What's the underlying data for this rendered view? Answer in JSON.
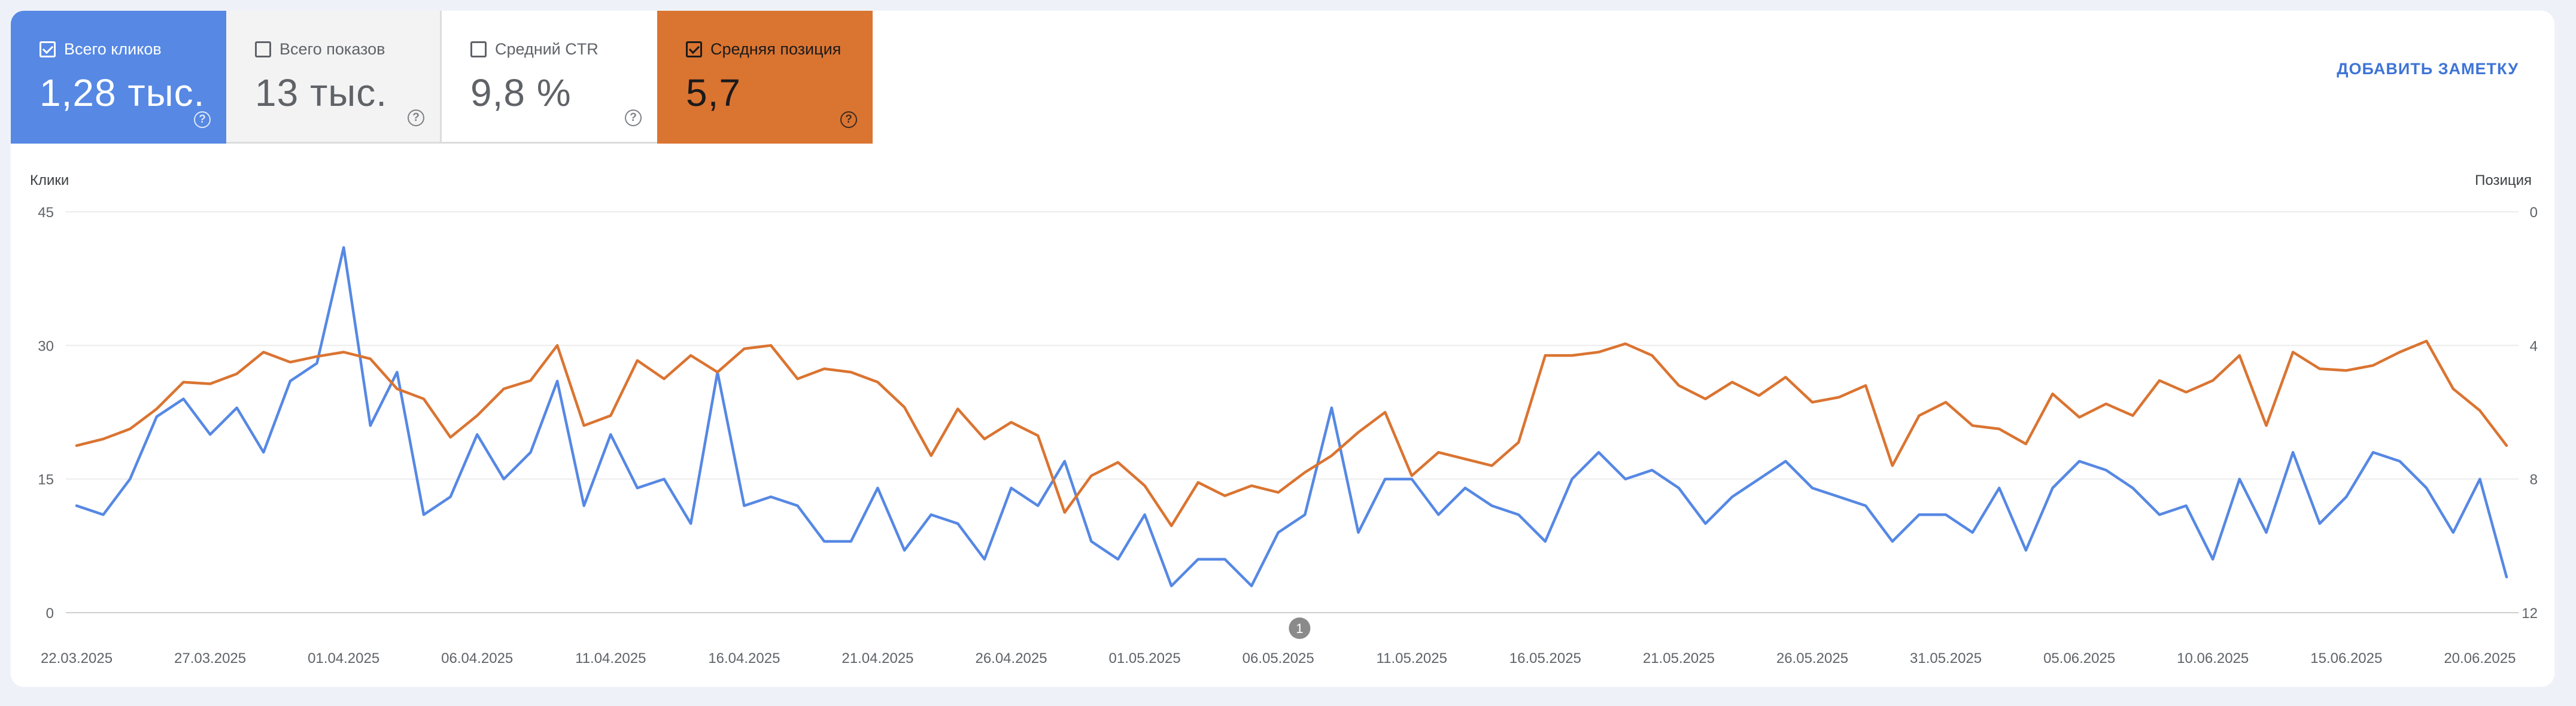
{
  "metrics": {
    "clicks": {
      "label": "Всего кликов",
      "value": "1,28 тыс.",
      "checked": true,
      "color": "#5688e4"
    },
    "impressions": {
      "label": "Всего показов",
      "value": "13 тыс.",
      "checked": false
    },
    "ctr": {
      "label": "Средний CTR",
      "value": "9,8 %",
      "checked": false
    },
    "position": {
      "label": "Средняя позиция",
      "value": "5,7",
      "checked": true,
      "color": "#da7431"
    }
  },
  "help_glyph": "?",
  "add_note_label": "ДОБАВИТЬ ЗАМЕТКУ",
  "annotation_label": "1",
  "chart_data": {
    "type": "line",
    "ylabel_left": "Клики",
    "ylabel_right": "Позиция",
    "y_left_ticks": [
      "45",
      "30",
      "15",
      "0"
    ],
    "y_right_ticks": [
      "0",
      "4",
      "8",
      "12"
    ],
    "ylim_left": [
      0,
      45
    ],
    "ylim_right": [
      12,
      0
    ],
    "right_axis_reversed": true,
    "grid": true,
    "x_tick_labels": [
      "22.03.2025",
      "27.03.2025",
      "01.04.2025",
      "06.04.2025",
      "11.04.2025",
      "16.04.2025",
      "21.04.2025",
      "26.04.2025",
      "01.05.2025",
      "06.05.2025",
      "11.05.2025",
      "16.05.2025",
      "21.05.2025",
      "26.05.2025",
      "31.05.2025",
      "05.06.2025",
      "10.06.2025",
      "15.06.2025",
      "20.06.2025"
    ],
    "x_start": "22.03.2025",
    "x_end": "21.06.2025",
    "series": [
      {
        "name": "Всего кликов",
        "axis": "left",
        "color": "#5688e4",
        "values": [
          12,
          11,
          15,
          22,
          24,
          20,
          23,
          18,
          26,
          28,
          41,
          21,
          27,
          11,
          13,
          20,
          15,
          18,
          26,
          12,
          20,
          14,
          15,
          10,
          27,
          12,
          13,
          12,
          8,
          8,
          14,
          7,
          11,
          10,
          6,
          14,
          12,
          17,
          8,
          6,
          11,
          3,
          6,
          6,
          3,
          9,
          11,
          23,
          9,
          15,
          15,
          11,
          14,
          12,
          11,
          8,
          15,
          18,
          15,
          16,
          14,
          10,
          13,
          15,
          17,
          14,
          13,
          12,
          8,
          11,
          11,
          9,
          14,
          7,
          14,
          17,
          16,
          14,
          11,
          12,
          6,
          15,
          9,
          18,
          10,
          13,
          18,
          17,
          14,
          9,
          15,
          4
        ]
      },
      {
        "name": "Средняя позиция",
        "axis": "right",
        "color": "#da7431",
        "values": [
          7.0,
          6.8,
          6.5,
          5.9,
          5.1,
          5.15,
          4.85,
          4.2,
          4.5,
          4.33,
          4.2,
          4.4,
          5.3,
          5.6,
          6.75,
          6.1,
          5.3,
          5.05,
          4.0,
          6.4,
          6.1,
          4.45,
          5.0,
          4.3,
          4.8,
          4.1,
          4.0,
          5.0,
          4.7,
          4.8,
          5.1,
          5.85,
          7.3,
          5.9,
          6.8,
          6.3,
          6.7,
          9.0,
          7.9,
          7.5,
          8.2,
          9.4,
          8.1,
          8.5,
          8.2,
          8.4,
          7.8,
          7.3,
          6.6,
          6.0,
          7.9,
          7.2,
          7.4,
          7.6,
          6.9,
          4.3,
          4.3,
          4.2,
          3.95,
          4.3,
          5.2,
          5.6,
          5.1,
          5.5,
          4.95,
          5.7,
          5.55,
          5.2,
          7.6,
          6.1,
          5.7,
          6.4,
          6.5,
          6.95,
          5.45,
          6.15,
          5.75,
          6.1,
          5.05,
          5.4,
          5.05,
          4.3,
          6.4,
          4.2,
          4.7,
          4.75,
          4.6,
          4.2,
          3.87,
          5.3,
          5.95,
          7.0
        ]
      }
    ]
  }
}
